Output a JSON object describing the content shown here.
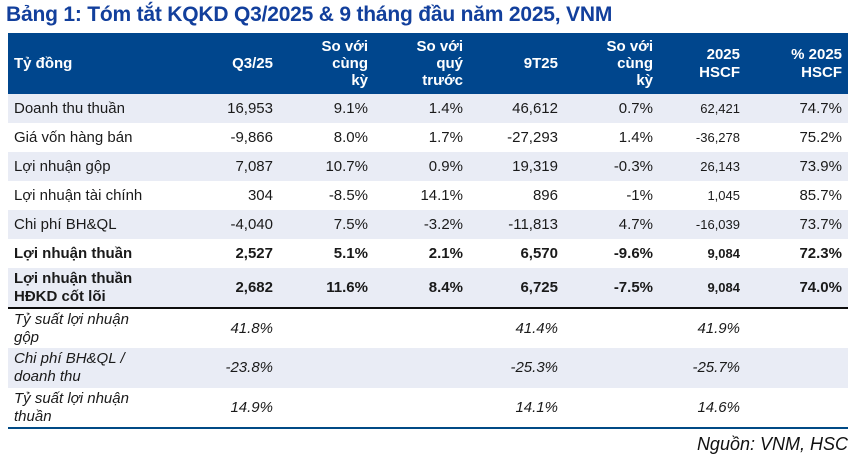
{
  "title": "Bảng 1: Tóm tắt KQKD Q3/2025 & 9 tháng đầu năm 2025, VNM",
  "table": {
    "columns": [
      "Tỷ đồng",
      "Q3/25",
      "So với\ncùng\nkỳ",
      "So với\nquý\ntrước",
      "9T25",
      "So với\ncùng\nkỳ",
      "2025\nHSCF",
      "% 2025\nHSCF"
    ],
    "rows": [
      {
        "label": "Doanh thu thuần",
        "style": "normal",
        "values": [
          "16,953",
          "9.1%",
          "1.4%",
          "46,612",
          "0.7%",
          "62,421",
          "74.7%"
        ]
      },
      {
        "label": "Giá vốn hàng bán",
        "style": "normal",
        "values": [
          "-9,866",
          "8.0%",
          "1.7%",
          "-27,293",
          "1.4%",
          "-36,278",
          "75.2%"
        ]
      },
      {
        "label": "Lợi nhuận gộp",
        "style": "normal",
        "values": [
          "7,087",
          "10.7%",
          "0.9%",
          "19,319",
          "-0.3%",
          "26,143",
          "73.9%"
        ]
      },
      {
        "label": "Lợi nhuận tài chính",
        "style": "normal",
        "values": [
          "304",
          "-8.5%",
          "14.1%",
          "896",
          "-1%",
          "1,045",
          "85.7%"
        ]
      },
      {
        "label": "Chi phí BH&QL",
        "style": "normal",
        "values": [
          "-4,040",
          "7.5%",
          "-3.2%",
          "-11,813",
          "4.7%",
          "-16,039",
          "73.7%"
        ]
      },
      {
        "label": "Lợi nhuận thuần",
        "style": "bold",
        "values": [
          "2,527",
          "5.1%",
          "2.1%",
          "6,570",
          "-9.6%",
          "9,084",
          "72.3%"
        ]
      },
      {
        "label": "Lợi nhuận thuần\nHĐKD cốt lõi",
        "style": "bold",
        "values": [
          "2,682",
          "11.6%",
          "8.4%",
          "6,725",
          "-7.5%",
          "9,084",
          "74.0%"
        ]
      },
      {
        "label": "Tỷ suất lợi nhuận\ngộp",
        "style": "ratio",
        "values": [
          "41.8%",
          "",
          "",
          "41.4%",
          "",
          "41.9%",
          ""
        ]
      },
      {
        "label": "Chi phí BH&QL /\ndoanh thu",
        "style": "ratio",
        "values": [
          "-23.8%",
          "",
          "",
          "-25.3%",
          "",
          "-25.7%",
          ""
        ]
      },
      {
        "label": "Tỷ suất lợi nhuận\nthuần",
        "style": "ratio",
        "values": [
          "14.9%",
          "",
          "",
          "14.1%",
          "",
          "14.6%",
          ""
        ]
      }
    ]
  },
  "footer": {
    "source": "Nguồn: VNM, HSC"
  },
  "colors": {
    "title_color": "#123f9c",
    "header_bg": "#00468d",
    "stripe": "#e9ecf5",
    "rule_navy": "#004a85",
    "rule_black": "#0d0d0d"
  }
}
